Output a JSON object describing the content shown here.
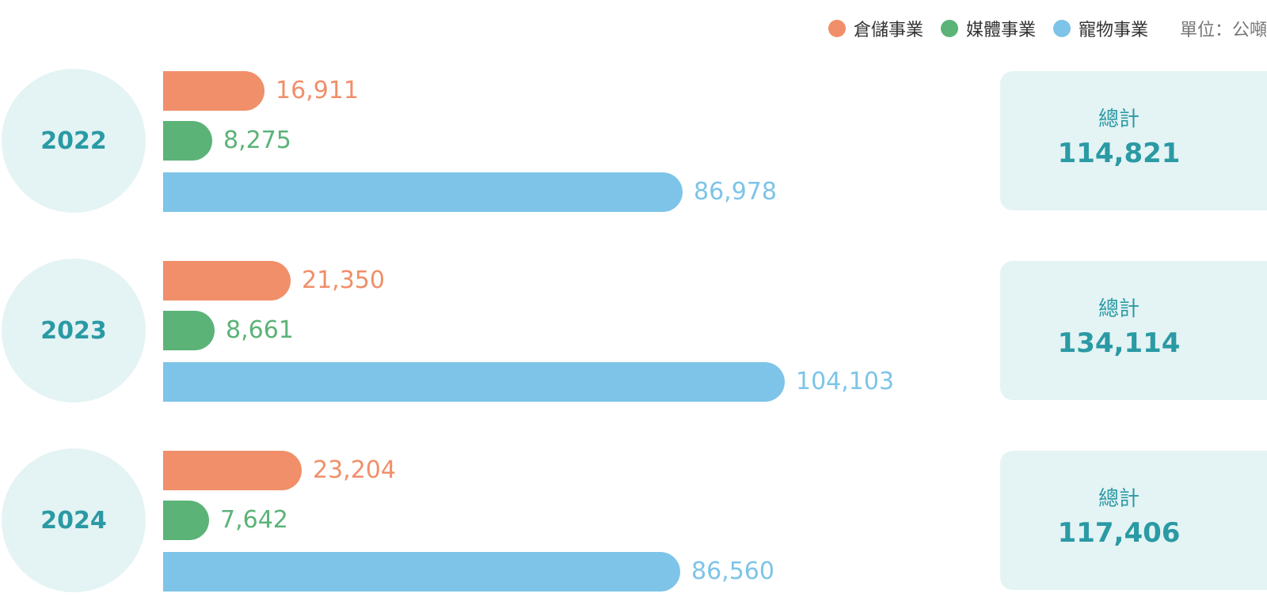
{
  "colors": {
    "storage": "#f08f69",
    "media": "#5bb377",
    "pet": "#7dc4e8",
    "teal": "#2a9aa4",
    "panel": "#e4f3f4"
  },
  "legend": {
    "items": [
      {
        "label": "倉儲事業",
        "color": "#f08f69"
      },
      {
        "label": "媒體事業",
        "color": "#5bb377"
      },
      {
        "label": "寵物事業",
        "color": "#7dc4e8"
      }
    ],
    "unit": "單位：公噸"
  },
  "chart_data": {
    "type": "bar",
    "orientation": "horizontal",
    "categories": [
      "2022",
      "2023",
      "2024"
    ],
    "series": [
      {
        "name": "倉儲事業",
        "values": [
          16911,
          21350,
          23204
        ],
        "labels": [
          "16,911",
          "21,350",
          "23,204"
        ]
      },
      {
        "name": "媒體事業",
        "values": [
          8275,
          8661,
          7642
        ],
        "labels": [
          "8,275",
          "8,661",
          "7,642"
        ]
      },
      {
        "name": "寵物事業",
        "values": [
          86978,
          104103,
          86560
        ],
        "labels": [
          "86,978",
          "104,103",
          "86,560"
        ]
      }
    ],
    "totals": [
      {
        "label": "總計",
        "value": "114,821"
      },
      {
        "label": "總計",
        "value": "134,114"
      },
      {
        "label": "總計",
        "value": "117,406"
      }
    ],
    "legend_position": "top-right",
    "grid": false
  }
}
